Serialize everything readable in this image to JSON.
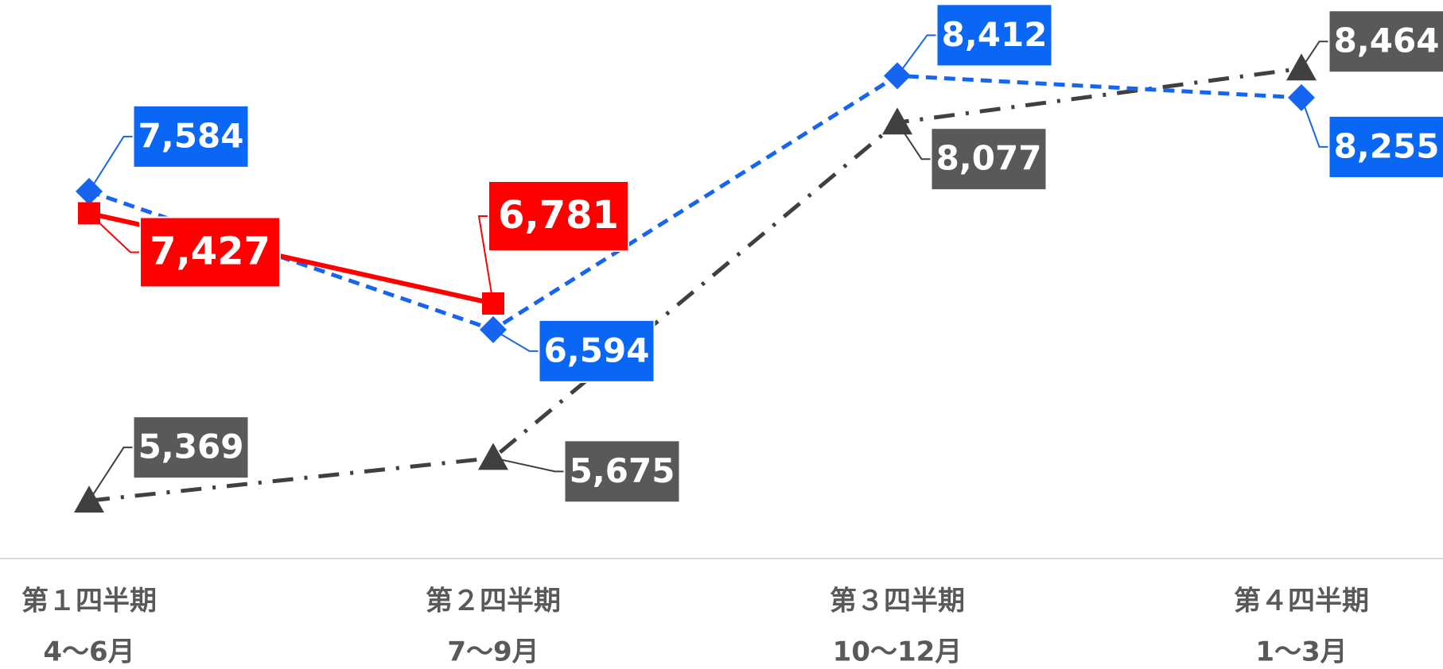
{
  "chart_data": {
    "type": "line",
    "categories": [
      "第１四半期",
      "第２四半期",
      "第３四半期",
      "第４四半期"
    ],
    "category_sublabels": [
      "4〜6月",
      "7〜9月",
      "10〜12月",
      "1〜3月"
    ],
    "ylim": [
      5000,
      9000
    ],
    "series": [
      {
        "color": "#ff0000",
        "label_color": "#ff0000",
        "marker": "square",
        "dash": "solid",
        "values": [
          7427,
          6781,
          null,
          null
        ],
        "value_labels": [
          "7,427",
          "6,781",
          null,
          null
        ]
      },
      {
        "color": "#1565f0",
        "label_color": "#0a66f5",
        "marker": "diamond",
        "dash": "dashed",
        "values": [
          7584,
          6594,
          8412,
          8255
        ],
        "value_labels": [
          "7,584",
          "6,594",
          "8,412",
          "8,255"
        ]
      },
      {
        "color": "#404040",
        "label_color": "#595959",
        "marker": "triangle",
        "dash": "dashdot",
        "values": [
          5369,
          5675,
          8077,
          8464
        ],
        "value_labels": [
          "5,369",
          "5,675",
          "8,077",
          "8,464"
        ]
      }
    ]
  }
}
